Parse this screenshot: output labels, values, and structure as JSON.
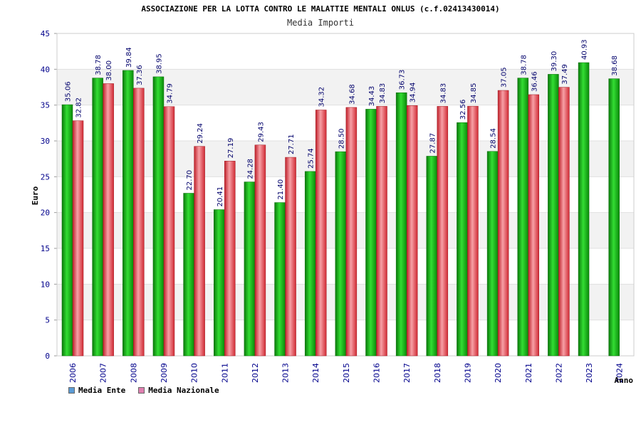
{
  "chart_data": {
    "type": "bar",
    "title": "ASSOCIAZIONE PER LA LOTTA CONTRO LE MALATTIE MENTALI ONLUS (c.f.02413430014)",
    "subtitle": "Media Importi",
    "xlabel": "Anno",
    "ylabel": "Euro",
    "ylim": [
      0,
      45
    ],
    "yticks": [
      0,
      5,
      10,
      15,
      20,
      25,
      30,
      35,
      40,
      45
    ],
    "grid": true,
    "legend_position": "bottom-left",
    "categories": [
      "2006",
      "2007",
      "2008",
      "2009",
      "2010",
      "2011",
      "2012",
      "2013",
      "2014",
      "2015",
      "2016",
      "2017",
      "2018",
      "2019",
      "2020",
      "2021",
      "2022",
      "2023",
      "2024"
    ],
    "series": [
      {
        "name": "Media Ente",
        "values": [
          35.06,
          38.78,
          39.84,
          38.95,
          22.7,
          20.41,
          24.28,
          21.4,
          25.74,
          28.5,
          34.43,
          36.73,
          27.87,
          32.56,
          28.54,
          38.78,
          39.3,
          40.93,
          38.68
        ],
        "labels": [
          "35.06",
          "38.78",
          "39.84",
          "38.95",
          "22.70",
          "20.41",
          "24.28",
          "21.40",
          "25.74",
          "28.50",
          "34.43",
          "36.73",
          "27.87",
          "32.56",
          "28.54",
          "38.78",
          "39.30",
          "40.93",
          "38.68"
        ]
      },
      {
        "name": "Media Nazionale",
        "values": [
          32.82,
          38.0,
          37.36,
          34.79,
          29.24,
          27.19,
          29.43,
          27.71,
          34.32,
          34.68,
          34.83,
          34.94,
          34.83,
          34.85,
          37.05,
          36.46,
          37.49,
          null,
          null
        ],
        "labels": [
          "32.82",
          "38.00",
          "37.36",
          "34.79",
          "29.24",
          "27.19",
          "29.43",
          "27.71",
          "34.32",
          "34.68",
          "34.83",
          "34.94",
          "34.83",
          "34.85",
          "37.05",
          "36.46",
          "37.49",
          "",
          ""
        ]
      }
    ]
  },
  "colors": {
    "ente_bar": "#1fbf1f",
    "nazionale_bar": "#e8444c",
    "ente_legend": "#5b9bd5",
    "nazionale_legend": "#e07fb0",
    "axis_text": "#00008b",
    "band": "#f2f2f2"
  }
}
